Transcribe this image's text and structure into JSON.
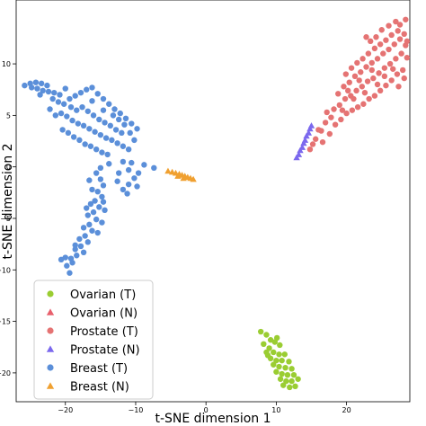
{
  "chart_data": {
    "type": "scatter",
    "title": "",
    "xlabel": "t-SNE dimension 1",
    "ylabel": "t-SNE dimension 2",
    "xlim": [
      -27,
      29
    ],
    "ylim": [
      -22.8,
      16.2
    ],
    "xticks": [
      -20,
      -10,
      0,
      10,
      20
    ],
    "yticks": [
      10,
      5,
      0,
      -5,
      -10,
      -15,
      -20
    ],
    "grid": false,
    "legend_position": "lower-left",
    "series": [
      {
        "name": "Ovarian (T)",
        "marker": "circle",
        "color": "#9acd32",
        "points": [
          [
            7.8,
            -16.0
          ],
          [
            8.6,
            -16.3
          ],
          [
            9.2,
            -16.8
          ],
          [
            8.2,
            -17.2
          ],
          [
            9.8,
            -17.0
          ],
          [
            10.5,
            -17.3
          ],
          [
            9.0,
            -17.6
          ],
          [
            8.6,
            -18.0
          ],
          [
            9.6,
            -18.0
          ],
          [
            10.4,
            -18.2
          ],
          [
            11.2,
            -18.2
          ],
          [
            9.2,
            -18.6
          ],
          [
            10.0,
            -18.8
          ],
          [
            10.8,
            -18.8
          ],
          [
            11.8,
            -18.9
          ],
          [
            9.6,
            -19.2
          ],
          [
            10.4,
            -19.4
          ],
          [
            11.3,
            -19.5
          ],
          [
            12.2,
            -19.6
          ],
          [
            10.0,
            -19.9
          ],
          [
            10.8,
            -20.1
          ],
          [
            11.6,
            -20.2
          ],
          [
            12.5,
            -20.2
          ],
          [
            10.6,
            -20.6
          ],
          [
            11.4,
            -20.8
          ],
          [
            12.2,
            -20.8
          ],
          [
            13.1,
            -20.6
          ],
          [
            11.0,
            -21.2
          ],
          [
            11.9,
            -21.4
          ],
          [
            12.7,
            -21.3
          ],
          [
            8.8,
            -18.3
          ],
          [
            10.1,
            -16.6
          ]
        ]
      },
      {
        "name": "Ovarian (N)",
        "marker": "triangle",
        "color": "#e8606c",
        "points": []
      },
      {
        "name": "Prostate (T)",
        "marker": "circle",
        "color": "#e57373",
        "points": [
          [
            14.8,
            1.7
          ],
          [
            15.6,
            2.7
          ],
          [
            16.4,
            3.5
          ],
          [
            17.0,
            4.3
          ],
          [
            17.8,
            4.8
          ],
          [
            18.2,
            5.6
          ],
          [
            19.0,
            6.0
          ],
          [
            19.8,
            6.6
          ],
          [
            20.6,
            6.9
          ],
          [
            21.4,
            7.4
          ],
          [
            22.2,
            7.8
          ],
          [
            23.0,
            8.3
          ],
          [
            23.8,
            8.6
          ],
          [
            24.6,
            9.1
          ],
          [
            25.4,
            9.6
          ],
          [
            26.2,
            10.0
          ],
          [
            27.0,
            10.5
          ],
          [
            27.8,
            11.0
          ],
          [
            28.4,
            11.8
          ],
          [
            28.6,
            10.6
          ],
          [
            28.0,
            9.4
          ],
          [
            27.2,
            9.0
          ],
          [
            26.4,
            8.4
          ],
          [
            25.6,
            7.9
          ],
          [
            24.8,
            7.4
          ],
          [
            24.0,
            6.9
          ],
          [
            23.2,
            6.6
          ],
          [
            22.4,
            6.1
          ],
          [
            21.6,
            5.8
          ],
          [
            20.8,
            5.5
          ],
          [
            20.0,
            5.2
          ],
          [
            19.2,
            4.6
          ],
          [
            18.4,
            4.1
          ],
          [
            17.6,
            3.2
          ],
          [
            16.6,
            2.4
          ],
          [
            18.8,
            7.1
          ],
          [
            19.6,
            7.8
          ],
          [
            20.4,
            8.2
          ],
          [
            21.2,
            8.8
          ],
          [
            22.0,
            9.2
          ],
          [
            22.8,
            9.7
          ],
          [
            23.6,
            10.1
          ],
          [
            24.4,
            10.5
          ],
          [
            25.2,
            11.0
          ],
          [
            26.0,
            11.4
          ],
          [
            26.8,
            11.9
          ],
          [
            27.6,
            12.4
          ],
          [
            28.2,
            12.9
          ],
          [
            27.3,
            13.2
          ],
          [
            26.4,
            12.8
          ],
          [
            25.6,
            12.3
          ],
          [
            24.8,
            11.9
          ],
          [
            24.0,
            11.5
          ],
          [
            23.1,
            11.0
          ],
          [
            22.3,
            10.5
          ],
          [
            21.5,
            10.1
          ],
          [
            20.7,
            9.6
          ],
          [
            19.9,
            9.0
          ],
          [
            25.0,
            13.3
          ],
          [
            26.0,
            13.7
          ],
          [
            27.0,
            14.1
          ],
          [
            24.2,
            12.6
          ],
          [
            23.4,
            12.2
          ],
          [
            28.4,
            14.3
          ],
          [
            27.6,
            13.8
          ],
          [
            21.0,
            6.6
          ],
          [
            22.6,
            7.2
          ],
          [
            24.4,
            8.0
          ],
          [
            26.6,
            9.5
          ],
          [
            28.2,
            8.6
          ],
          [
            27.4,
            7.8
          ],
          [
            25.4,
            8.8
          ],
          [
            23.6,
            9.4
          ],
          [
            21.8,
            8.4
          ],
          [
            20.2,
            7.4
          ],
          [
            19.4,
            5.5
          ],
          [
            17.2,
            5.3
          ],
          [
            16.0,
            3.6
          ],
          [
            15.2,
            2.2
          ],
          [
            22.8,
            12.6
          ],
          [
            28.6,
            12.2
          ]
        ]
      },
      {
        "name": "Prostate (N)",
        "marker": "triangle",
        "color": "#7b68ee",
        "points": [
          [
            12.9,
            0.9
          ],
          [
            13.2,
            1.2
          ],
          [
            13.4,
            1.6
          ],
          [
            13.7,
            1.9
          ],
          [
            13.9,
            2.3
          ],
          [
            14.1,
            2.6
          ],
          [
            14.3,
            3.0
          ],
          [
            14.6,
            3.3
          ],
          [
            14.8,
            3.7
          ],
          [
            15.0,
            4.0
          ]
        ]
      },
      {
        "name": "Breast (T)",
        "marker": "circle",
        "color": "#5b8fd9",
        "points": [
          [
            -25.8,
            7.9
          ],
          [
            -25.0,
            8.1
          ],
          [
            -24.2,
            8.2
          ],
          [
            -23.4,
            8.1
          ],
          [
            -22.6,
            7.9
          ],
          [
            -24.8,
            7.7
          ],
          [
            -24.0,
            7.6
          ],
          [
            -23.2,
            7.4
          ],
          [
            -22.4,
            7.3
          ],
          [
            -21.6,
            7.2
          ],
          [
            -20.8,
            7.0
          ],
          [
            -21.8,
            6.6
          ],
          [
            -21.0,
            6.3
          ],
          [
            -20.2,
            6.1
          ],
          [
            -19.4,
            6.6
          ],
          [
            -18.6,
            6.9
          ],
          [
            -17.8,
            7.2
          ],
          [
            -17.0,
            7.5
          ],
          [
            -16.2,
            7.7
          ],
          [
            -15.4,
            7.1
          ],
          [
            -14.6,
            6.6
          ],
          [
            -13.8,
            6.1
          ],
          [
            -13.0,
            5.6
          ],
          [
            -12.2,
            5.2
          ],
          [
            -11.4,
            4.7
          ],
          [
            -10.6,
            4.2
          ],
          [
            -9.8,
            3.7
          ],
          [
            -20.6,
            5.2
          ],
          [
            -19.8,
            4.9
          ],
          [
            -19.0,
            4.5
          ],
          [
            -18.2,
            4.2
          ],
          [
            -17.4,
            4.0
          ],
          [
            -16.6,
            3.7
          ],
          [
            -15.8,
            3.4
          ],
          [
            -15.0,
            3.1
          ],
          [
            -14.2,
            2.8
          ],
          [
            -13.4,
            2.6
          ],
          [
            -12.6,
            2.3
          ],
          [
            -11.8,
            2.0
          ],
          [
            -11.0,
            1.7
          ],
          [
            -22.2,
            5.6
          ],
          [
            -21.4,
            5.0
          ],
          [
            -20.4,
            3.6
          ],
          [
            -19.6,
            3.3
          ],
          [
            -18.8,
            2.9
          ],
          [
            -18.0,
            2.6
          ],
          [
            -17.2,
            2.2
          ],
          [
            -16.4,
            2.0
          ],
          [
            -15.6,
            1.7
          ],
          [
            -14.8,
            1.4
          ],
          [
            -14.0,
            1.2
          ],
          [
            -16.8,
            5.4
          ],
          [
            -16.0,
            5.0
          ],
          [
            -15.2,
            4.6
          ],
          [
            -14.4,
            4.3
          ],
          [
            -13.6,
            4.0
          ],
          [
            -12.8,
            3.6
          ],
          [
            -12.0,
            3.3
          ],
          [
            -17.6,
            5.8
          ],
          [
            -18.4,
            5.5
          ],
          [
            -14.6,
            5.5
          ],
          [
            -13.2,
            5.0
          ],
          [
            -12.4,
            4.6
          ],
          [
            -11.6,
            4.1
          ],
          [
            -10.8,
            3.3
          ],
          [
            -10.2,
            2.6
          ],
          [
            -19.2,
            5.8
          ],
          [
            -20.0,
            7.6
          ],
          [
            -23.6,
            7.0
          ],
          [
            -16.2,
            6.4
          ],
          [
            -13.8,
            0.3
          ],
          [
            -12.4,
            -0.6
          ],
          [
            -11.8,
            0.5
          ],
          [
            -11.0,
            -0.3
          ],
          [
            -10.6,
            0.4
          ],
          [
            -9.6,
            -0.6
          ],
          [
            -8.8,
            0.2
          ],
          [
            -7.4,
            -0.1
          ],
          [
            -12.6,
            -1.4
          ],
          [
            -11.8,
            -2.2
          ],
          [
            -11.0,
            -1.7
          ],
          [
            -10.2,
            -1.1
          ],
          [
            -9.8,
            -1.9
          ],
          [
            -11.2,
            -2.6
          ],
          [
            -15.6,
            -0.6
          ],
          [
            -15.0,
            -1.2
          ],
          [
            -14.6,
            -1.8
          ],
          [
            -15.4,
            -2.4
          ],
          [
            -16.2,
            -2.2
          ],
          [
            -14.8,
            -2.9
          ],
          [
            -15.8,
            -3.3
          ],
          [
            -16.4,
            -3.6
          ],
          [
            -15.2,
            -3.9
          ],
          [
            -14.4,
            -4.2
          ],
          [
            -16.0,
            -4.4
          ],
          [
            -16.8,
            -4.7
          ],
          [
            -15.6,
            -5.1
          ],
          [
            -14.8,
            -5.4
          ],
          [
            -16.6,
            -5.6
          ],
          [
            -17.4,
            -5.9
          ],
          [
            -16.2,
            -6.2
          ],
          [
            -15.4,
            -6.4
          ],
          [
            -17.2,
            -6.7
          ],
          [
            -18.0,
            -7.0
          ],
          [
            -16.8,
            -7.3
          ],
          [
            -17.8,
            -7.7
          ],
          [
            -18.6,
            -8.0
          ],
          [
            -17.4,
            -8.3
          ],
          [
            -18.4,
            -8.6
          ],
          [
            -19.2,
            -8.9
          ],
          [
            -20.0,
            -8.8
          ],
          [
            -19.0,
            -9.3
          ],
          [
            -20.6,
            -9.0
          ],
          [
            -19.8,
            -9.6
          ],
          [
            -19.4,
            -10.3
          ],
          [
            -18.6,
            -7.6
          ],
          [
            -17.0,
            -4.0
          ],
          [
            -14.6,
            -3.4
          ],
          [
            -15.0,
            -0.1
          ],
          [
            -16.6,
            -1.3
          ]
        ]
      },
      {
        "name": "Breast (N)",
        "marker": "triangle",
        "color": "#f0a030",
        "points": [
          [
            -5.4,
            -0.4
          ],
          [
            -4.8,
            -0.5
          ],
          [
            -4.3,
            -0.6
          ],
          [
            -3.8,
            -0.7
          ],
          [
            -3.4,
            -0.8
          ],
          [
            -3.0,
            -0.9
          ],
          [
            -2.6,
            -1.0
          ],
          [
            -2.2,
            -1.1
          ],
          [
            -1.8,
            -1.2
          ],
          [
            -4.0,
            -0.9
          ],
          [
            -3.2,
            -1.1
          ]
        ]
      }
    ]
  }
}
